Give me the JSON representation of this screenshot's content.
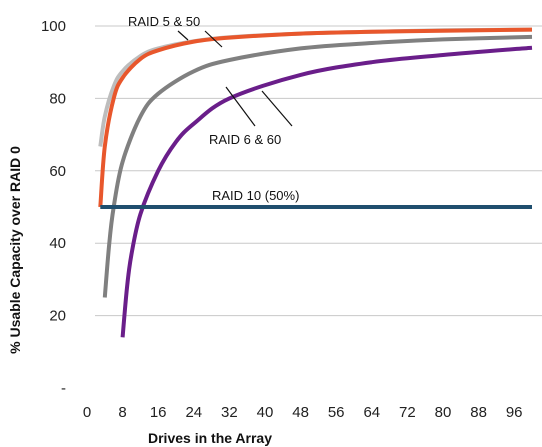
{
  "chart_data": {
    "type": "line",
    "title": "",
    "xlabel": "Drives in the Array",
    "ylabel": "% Usable Capacity  over RAID 0",
    "xlim": [
      0,
      100
    ],
    "ylim": [
      0,
      100
    ],
    "grid": true,
    "x_ticks": [
      "0",
      "8",
      "16",
      "24",
      "32",
      "40",
      "48",
      "56",
      "64",
      "72",
      "80",
      "88",
      "96"
    ],
    "y_ticks": [
      "-",
      "20",
      "40",
      "60",
      "80",
      "100"
    ],
    "annotations": [
      {
        "text": "RAID 5 & 50"
      },
      {
        "text": "RAID 6 & 60"
      },
      {
        "text": "RAID 10 (50%)"
      }
    ],
    "series": [
      {
        "color": "#bdbdbd",
        "x": [
          3,
          4,
          6,
          8,
          12,
          16,
          24,
          32,
          48,
          64,
          80,
          100
        ],
        "y": [
          66.7,
          75,
          83.3,
          87.5,
          91.7,
          93.8,
          95.8,
          96.9,
          97.9,
          98.4,
          98.8,
          99
        ]
      },
      {
        "color": "#e8572c",
        "x": [
          3,
          4,
          6,
          8,
          12,
          16,
          24,
          32,
          48,
          64,
          80,
          100
        ],
        "y": [
          50,
          66.7,
          80,
          85.7,
          90.9,
          93.3,
          95.7,
          96.8,
          97.9,
          98.4,
          98.7,
          99
        ]
      },
      {
        "color": "#808080",
        "x": [
          4,
          5,
          6,
          8,
          12,
          16,
          24,
          32,
          48,
          64,
          80,
          100
        ],
        "y": [
          25,
          40,
          50,
          62.5,
          75,
          81.3,
          87.5,
          90.6,
          93.8,
          95.3,
          96.3,
          97
        ]
      },
      {
        "color": "#6a1e8a",
        "x": [
          8,
          9,
          10,
          12,
          16,
          20,
          24,
          32,
          48,
          64,
          80,
          100
        ],
        "y": [
          14,
          28,
          37,
          48,
          60,
          68,
          73,
          80,
          86.5,
          90,
          92,
          94
        ]
      },
      {
        "color": "#1f4e6e",
        "x": [
          3,
          100
        ],
        "y": [
          50,
          50
        ]
      }
    ]
  }
}
